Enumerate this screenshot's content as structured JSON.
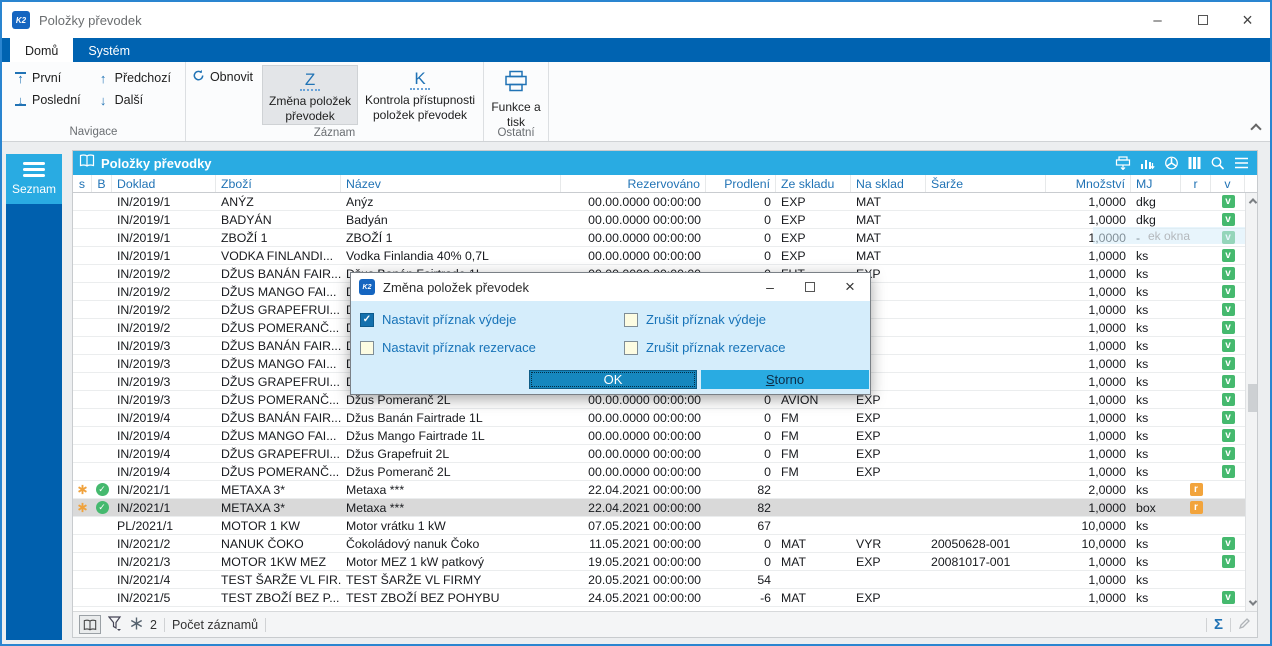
{
  "window": {
    "title": "Položky převodek",
    "logo": "K2"
  },
  "tabs": [
    {
      "label": "Domů",
      "active": true
    },
    {
      "label": "Systém",
      "active": false
    }
  ],
  "ribbon": {
    "groups": [
      {
        "label": "Navigace",
        "buttons": [
          {
            "label": "První",
            "icon": "arrow-up-to-bar"
          },
          {
            "label": "Poslední",
            "icon": "arrow-down-to-bar"
          },
          {
            "label": "Předchozí",
            "icon": "arrow-up"
          },
          {
            "label": "Další",
            "icon": "arrow-down"
          }
        ]
      },
      {
        "label": "Záznam",
        "buttons": [
          {
            "label": "Obnovit",
            "icon": "refresh"
          },
          {
            "label": "Změna položek převodek",
            "icon": "letter-Z",
            "pressed": true
          },
          {
            "label": "Kontrola přístupnosti položek převodek",
            "icon": "letter-K",
            "pressed": false
          }
        ]
      },
      {
        "label": "Ostatní",
        "buttons": [
          {
            "label": "Funkce a tisk",
            "icon": "printer"
          }
        ]
      }
    ]
  },
  "sidebar": {
    "label": "Seznam"
  },
  "table": {
    "title": "Položky převodky",
    "toolbar_icons": [
      "print",
      "graph",
      "special-function",
      "columns",
      "search",
      "menu"
    ],
    "columns": [
      "s",
      "B",
      "Doklad",
      "Zboží",
      "Název",
      "Rezervováno",
      "Prodlení",
      "Ze skladu",
      "Na sklad",
      "Šarže",
      "Množství",
      "MJ",
      "r",
      "v"
    ],
    "rows": [
      {
        "s": false,
        "b": false,
        "doklad": "IN/2019/1",
        "zbozi": "ANÝZ",
        "nazev": "Anýz",
        "rezervovano": "00.00.0000 00:00:00",
        "prodleni": "0",
        "ze_skladu": "EXP",
        "na_sklad": "MAT",
        "sarze": "",
        "mnozstvi": "1,0000",
        "mj": "dkg",
        "r": false,
        "v": true,
        "selected": false
      },
      {
        "s": false,
        "b": false,
        "doklad": "IN/2019/1",
        "zbozi": "BADYÁN",
        "nazev": "Badyán",
        "rezervovano": "00.00.0000 00:00:00",
        "prodleni": "0",
        "ze_skladu": "EXP",
        "na_sklad": "MAT",
        "sarze": "",
        "mnozstvi": "1,0000",
        "mj": "dkg",
        "r": false,
        "v": true,
        "selected": false
      },
      {
        "s": false,
        "b": false,
        "doklad": "IN/2019/1",
        "zbozi": "ZBOŽÍ 1",
        "nazev": "ZBOŽÍ 1",
        "rezervovano": "00.00.0000 00:00:00",
        "prodleni": "0",
        "ze_skladu": "EXP",
        "na_sklad": "MAT",
        "sarze": "",
        "mnozstvi": "1,0000",
        "mj": "-",
        "r": false,
        "v": true,
        "selected": false
      },
      {
        "s": false,
        "b": false,
        "doklad": "IN/2019/1",
        "zbozi": "VODKA FINLANDI...",
        "nazev": "Vodka Finlandia 40% 0,7L",
        "rezervovano": "00.00.0000 00:00:00",
        "prodleni": "0",
        "ze_skladu": "EXP",
        "na_sklad": "MAT",
        "sarze": "",
        "mnozstvi": "1,0000",
        "mj": "ks",
        "r": false,
        "v": true,
        "selected": false
      },
      {
        "s": false,
        "b": false,
        "doklad": "IN/2019/2",
        "zbozi": "DŽUS BANÁN FAIR...",
        "nazev": "Džus Banán Fairtrade 1L",
        "rezervovano": "00.00.0000 00:00:00",
        "prodleni": "0",
        "ze_skladu": "FUT",
        "na_sklad": "EXP",
        "sarze": "",
        "mnozstvi": "1,0000",
        "mj": "ks",
        "r": false,
        "v": true,
        "selected": false
      },
      {
        "s": false,
        "b": false,
        "doklad": "IN/2019/2",
        "zbozi": "DŽUS MANGO FAI...",
        "nazev": "Džus Mango Fairtrade 1L",
        "rezervovano": "",
        "prodleni": "",
        "ze_skladu": "",
        "na_sklad": "",
        "sarze": "",
        "mnozstvi": "1,0000",
        "mj": "ks",
        "r": false,
        "v": true,
        "selected": false
      },
      {
        "s": false,
        "b": false,
        "doklad": "IN/2019/2",
        "zbozi": "DŽUS GRAPEFRUI...",
        "nazev": "Džus Grapefruit 2L",
        "rezervovano": "",
        "prodleni": "",
        "ze_skladu": "",
        "na_sklad": "",
        "sarze": "",
        "mnozstvi": "1,0000",
        "mj": "ks",
        "r": false,
        "v": true,
        "selected": false
      },
      {
        "s": false,
        "b": false,
        "doklad": "IN/2019/2",
        "zbozi": "DŽUS POMERANČ...",
        "nazev": "Džus Pomeranč 2L",
        "rezervovano": "",
        "prodleni": "",
        "ze_skladu": "",
        "na_sklad": "",
        "sarze": "",
        "mnozstvi": "1,0000",
        "mj": "ks",
        "r": false,
        "v": true,
        "selected": false
      },
      {
        "s": false,
        "b": false,
        "doklad": "IN/2019/3",
        "zbozi": "DŽUS BANÁN FAIR...",
        "nazev": "Džus Banán Fairtrade 1L",
        "rezervovano": "",
        "prodleni": "",
        "ze_skladu": "",
        "na_sklad": "",
        "sarze": "",
        "mnozstvi": "1,0000",
        "mj": "ks",
        "r": false,
        "v": true,
        "selected": false
      },
      {
        "s": false,
        "b": false,
        "doklad": "IN/2019/3",
        "zbozi": "DŽUS MANGO FAI...",
        "nazev": "Džus Mango Fairtrade 1L",
        "rezervovano": "",
        "prodleni": "",
        "ze_skladu": "",
        "na_sklad": "",
        "sarze": "",
        "mnozstvi": "1,0000",
        "mj": "ks",
        "r": false,
        "v": true,
        "selected": false
      },
      {
        "s": false,
        "b": false,
        "doklad": "IN/2019/3",
        "zbozi": "DŽUS GRAPEFRUI...",
        "nazev": "Džus Grapefruit 2L",
        "rezervovano": "",
        "prodleni": "",
        "ze_skladu": "",
        "na_sklad": "",
        "sarze": "",
        "mnozstvi": "1,0000",
        "mj": "ks",
        "r": false,
        "v": true,
        "selected": false
      },
      {
        "s": false,
        "b": false,
        "doklad": "IN/2019/3",
        "zbozi": "DŽUS POMERANČ...",
        "nazev": "Džus Pomeranč 2L",
        "rezervovano": "00.00.0000 00:00:00",
        "prodleni": "0",
        "ze_skladu": "AVION",
        "na_sklad": "EXP",
        "sarze": "",
        "mnozstvi": "1,0000",
        "mj": "ks",
        "r": false,
        "v": true,
        "selected": false
      },
      {
        "s": false,
        "b": false,
        "doklad": "IN/2019/4",
        "zbozi": "DŽUS BANÁN FAIR...",
        "nazev": "Džus Banán Fairtrade 1L",
        "rezervovano": "00.00.0000 00:00:00",
        "prodleni": "0",
        "ze_skladu": "FM",
        "na_sklad": "EXP",
        "sarze": "",
        "mnozstvi": "1,0000",
        "mj": "ks",
        "r": false,
        "v": true,
        "selected": false
      },
      {
        "s": false,
        "b": false,
        "doklad": "IN/2019/4",
        "zbozi": "DŽUS MANGO FAI...",
        "nazev": "Džus Mango Fairtrade 1L",
        "rezervovano": "00.00.0000 00:00:00",
        "prodleni": "0",
        "ze_skladu": "FM",
        "na_sklad": "EXP",
        "sarze": "",
        "mnozstvi": "1,0000",
        "mj": "ks",
        "r": false,
        "v": true,
        "selected": false
      },
      {
        "s": false,
        "b": false,
        "doklad": "IN/2019/4",
        "zbozi": "DŽUS GRAPEFRUI...",
        "nazev": "Džus Grapefruit 2L",
        "rezervovano": "00.00.0000 00:00:00",
        "prodleni": "0",
        "ze_skladu": "FM",
        "na_sklad": "EXP",
        "sarze": "",
        "mnozstvi": "1,0000",
        "mj": "ks",
        "r": false,
        "v": true,
        "selected": false
      },
      {
        "s": false,
        "b": false,
        "doklad": "IN/2019/4",
        "zbozi": "DŽUS POMERANČ...",
        "nazev": "Džus Pomeranč 2L",
        "rezervovano": "00.00.0000 00:00:00",
        "prodleni": "0",
        "ze_skladu": "FM",
        "na_sklad": "EXP",
        "sarze": "",
        "mnozstvi": "1,0000",
        "mj": "ks",
        "r": false,
        "v": true,
        "selected": false
      },
      {
        "s": true,
        "b": true,
        "doklad": "IN/2021/1",
        "zbozi": "METAXA 3*",
        "nazev": "Metaxa ***",
        "rezervovano": "22.04.2021 00:00:00",
        "prodleni": "82",
        "ze_skladu": "",
        "na_sklad": "",
        "sarze": "",
        "mnozstvi": "2,0000",
        "mj": "ks",
        "r": true,
        "v": false,
        "selected": false
      },
      {
        "s": true,
        "b": true,
        "doklad": "IN/2021/1",
        "zbozi": "METAXA 3*",
        "nazev": "Metaxa ***",
        "rezervovano": "22.04.2021 00:00:00",
        "prodleni": "82",
        "ze_skladu": "",
        "na_sklad": "",
        "sarze": "",
        "mnozstvi": "1,0000",
        "mj": "box",
        "r": true,
        "v": false,
        "selected": true
      },
      {
        "s": false,
        "b": false,
        "doklad": "PL/2021/1",
        "zbozi": "MOTOR 1 KW",
        "nazev": "Motor vrátku 1 kW",
        "rezervovano": "07.05.2021 00:00:00",
        "prodleni": "67",
        "ze_skladu": "",
        "na_sklad": "",
        "sarze": "",
        "mnozstvi": "10,0000",
        "mj": "ks",
        "r": false,
        "v": false,
        "selected": false
      },
      {
        "s": false,
        "b": false,
        "doklad": "IN/2021/2",
        "zbozi": "NANUK ČOKO",
        "nazev": "Čokoládový nanuk Čoko",
        "rezervovano": "11.05.2021 00:00:00",
        "prodleni": "0",
        "ze_skladu": "MAT",
        "na_sklad": "VYR",
        "sarze": "20050628-001",
        "mnozstvi": "10,0000",
        "mj": "ks",
        "r": false,
        "v": true,
        "selected": false
      },
      {
        "s": false,
        "b": false,
        "doklad": "IN/2021/3",
        "zbozi": "MOTOR 1KW MEZ",
        "nazev": "Motor MEZ 1 kW patkový",
        "rezervovano": "19.05.2021 00:00:00",
        "prodleni": "0",
        "ze_skladu": "MAT",
        "na_sklad": "EXP",
        "sarze": "20081017-001",
        "mnozstvi": "1,0000",
        "mj": "ks",
        "r": false,
        "v": true,
        "selected": false
      },
      {
        "s": false,
        "b": false,
        "doklad": "IN/2021/4",
        "zbozi": "TEST ŠARŽE VL FIR...",
        "nazev": "TEST ŠARŽE VL FIRMY",
        "rezervovano": "20.05.2021 00:00:00",
        "prodleni": "54",
        "ze_skladu": "",
        "na_sklad": "",
        "sarze": "",
        "mnozstvi": "1,0000",
        "mj": "ks",
        "r": false,
        "v": false,
        "selected": false
      },
      {
        "s": false,
        "b": false,
        "doklad": "IN/2021/5",
        "zbozi": "TEST ZBOŽÍ BEZ P...",
        "nazev": "TEST ZBOŽÍ BEZ POHYBU",
        "rezervovano": "24.05.2021 00:00:00",
        "prodleni": "-6",
        "ze_skladu": "MAT",
        "na_sklad": "EXP",
        "sarze": "",
        "mnozstvi": "1,0000",
        "mj": "ks",
        "r": false,
        "v": true,
        "selected": false
      }
    ]
  },
  "dialog": {
    "title": "Změna položek převodek",
    "checkboxes": [
      {
        "label": "Nastavit příznak výdeje",
        "checked": true
      },
      {
        "label": "Zrušit příznak výdeje",
        "checked": false
      },
      {
        "label": "Nastavit příznak rezervace",
        "checked": false
      },
      {
        "label": "Zrušit příznak rezervace",
        "checked": false
      }
    ],
    "buttons": [
      {
        "label": "OK",
        "default": true
      },
      {
        "label": "Storno",
        "underline_first_letter": true
      }
    ]
  },
  "statusbar": {
    "filter_badge_count": "2",
    "records_label": "Počet záznamů",
    "icons": [
      "book",
      "filter",
      "snowflake"
    ],
    "right_icons": [
      "sum",
      "edit"
    ]
  },
  "fading_tooltip": "ek okna",
  "colors": {
    "accent_cyan": "#29abe2",
    "ribbon_blue": "#0063b1",
    "icon_blue": "#2173b5",
    "badge_green": "#45b96e",
    "badge_orange": "#f2a43c",
    "dialog_body": "#d5edfb",
    "ok_button": "#1687be",
    "selected_row": "#d9d9d9"
  }
}
